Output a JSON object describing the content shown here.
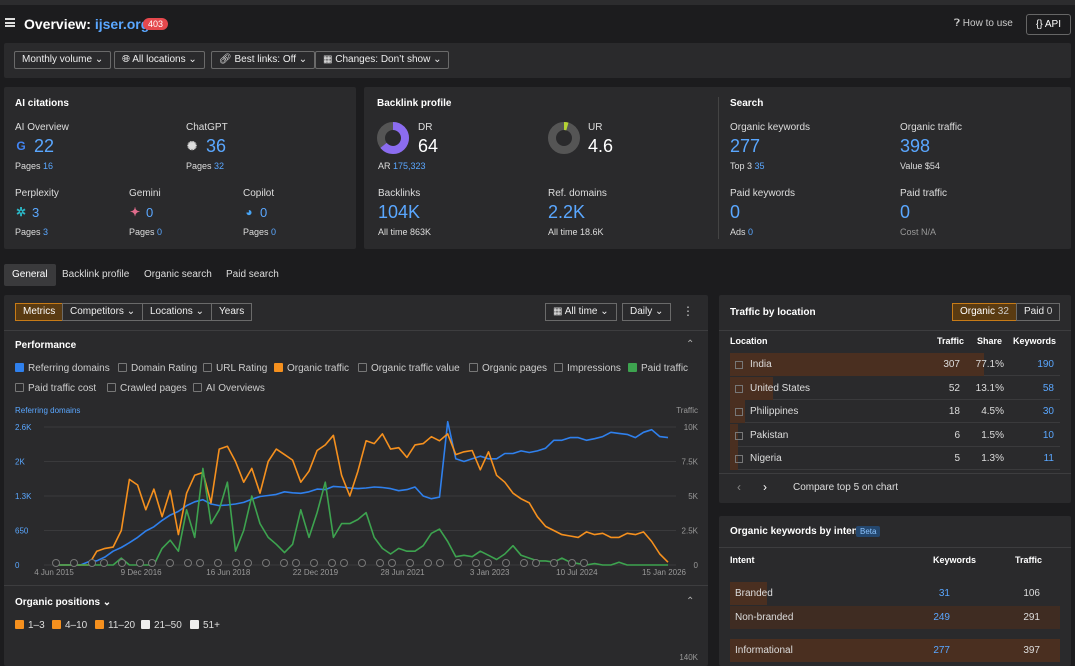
{
  "header": {
    "title_prefix": "Overview: ",
    "domain": "ijser.org/",
    "status_badge": "403",
    "how_to_use": "How to use",
    "api_label": "API"
  },
  "filters": {
    "volume": "Monthly volume",
    "locations": "All locations",
    "best_links": "Best links: Off",
    "changes": "Changes: Don’t show"
  },
  "ai_citations": {
    "title": "AI citations",
    "ai_overview": {
      "label": "AI Overview",
      "value": "22",
      "pages_label": "Pages",
      "pages": "16"
    },
    "chatgpt": {
      "label": "ChatGPT",
      "value": "36",
      "pages_label": "Pages",
      "pages": "32"
    },
    "perplexity": {
      "label": "Perplexity",
      "value": "3",
      "pages_label": "Pages",
      "pages": "3"
    },
    "gemini": {
      "label": "Gemini",
      "value": "0",
      "pages_label": "Pages",
      "pages": "0"
    },
    "copilot": {
      "label": "Copilot",
      "value": "0",
      "pages_label": "Pages",
      "pages": "0"
    }
  },
  "backlink_profile": {
    "title": "Backlink profile",
    "dr": {
      "label": "DR",
      "value": "64",
      "fill": 0.64
    },
    "ar": {
      "label": "AR",
      "value": "175,323"
    },
    "ur": {
      "label": "UR",
      "value": "4.6",
      "fill": 0.046
    },
    "backlinks": {
      "label": "Backlinks",
      "value": "104K",
      "all_time_label": "All time",
      "all_time": "863K"
    },
    "ref_domains": {
      "label": "Ref. domains",
      "value": "2.2K",
      "all_time_label": "All time",
      "all_time": "18.6K"
    }
  },
  "search": {
    "title": "Search",
    "organic_keywords": {
      "label": "Organic keywords",
      "value": "277",
      "top3_label": "Top 3",
      "top3": "35"
    },
    "organic_traffic": {
      "label": "Organic traffic",
      "value": "398",
      "value_label": "Value",
      "value_amount": "$54"
    },
    "paid_keywords": {
      "label": "Paid keywords",
      "value": "0",
      "ads_label": "Ads",
      "ads": "0"
    },
    "paid_traffic": {
      "label": "Paid traffic",
      "value": "0",
      "cost_label": "Cost",
      "cost": "N/A"
    }
  },
  "tabs": [
    "General",
    "Backlink profile",
    "Organic search",
    "Paid search"
  ],
  "chart_toolbar": {
    "metrics": "Metrics",
    "competitors": "Competitors",
    "locations": "Locations",
    "years": "Years",
    "range": "All time",
    "interval": "Daily"
  },
  "performance": {
    "title": "Performance",
    "checkboxes": [
      {
        "label": "Referring domains",
        "checked": true,
        "color": "#2f80ed"
      },
      {
        "label": "Domain Rating",
        "checked": false
      },
      {
        "label": "URL Rating",
        "checked": false
      },
      {
        "label": "Organic traffic",
        "checked": true,
        "color": "#f5901e"
      },
      {
        "label": "Organic traffic value",
        "checked": false
      },
      {
        "label": "Organic pages",
        "checked": false
      },
      {
        "label": "Impressions",
        "checked": false
      },
      {
        "label": "Paid traffic",
        "checked": true,
        "color": "#3da34f"
      },
      {
        "label": "Paid traffic cost",
        "checked": false
      },
      {
        "label": "Crawled pages",
        "checked": false
      },
      {
        "label": "AI Overviews",
        "checked": false
      }
    ]
  },
  "chart_data": {
    "type": "line",
    "ylabel": "Referring domains",
    "y2label": "Traffic",
    "y_ticks": [
      "0",
      "650",
      "1.3K",
      "2K",
      "2.6K"
    ],
    "y2_ticks": [
      "0",
      "2.5K",
      "5K",
      "7.5K",
      "10K"
    ],
    "x_ticks": [
      "4 Jun 2015",
      "9 Dec 2016",
      "16 Jun 2018",
      "22 Dec 2019",
      "28 Jun 2021",
      "3 Jan 2023",
      "10 Jul 2024",
      "15 Jan 2026"
    ],
    "ylim": [
      0,
      2600
    ],
    "y2lim": [
      0,
      10000
    ],
    "series": [
      {
        "name": "Referring domains",
        "color": "#2f80ed",
        "axis": "left",
        "values": [
          0,
          0,
          0,
          0,
          60,
          80,
          150,
          260,
          330,
          420,
          520,
          640,
          720,
          840,
          940,
          1010,
          1120,
          1190,
          1230,
          1150,
          1120,
          1130,
          1150,
          1180,
          1240,
          1290,
          1310,
          1330,
          1380,
          1360,
          1350,
          1380,
          1430,
          1420,
          1480,
          1470,
          1450,
          1440,
          1450,
          1470,
          1460,
          1440,
          1400,
          1420,
          1470,
          1300,
          1250,
          1280,
          2700,
          2000,
          1950,
          2000,
          2050,
          2000,
          2000,
          2100,
          2100,
          2150,
          2120,
          2150,
          2200,
          2350,
          2350,
          2400,
          2400,
          2350,
          2380,
          2420,
          2500,
          2480,
          2460,
          2400,
          2500,
          2550,
          2420,
          2400
        ]
      },
      {
        "name": "Organic traffic",
        "color": "#f5901e",
        "axis": "right",
        "values": [
          0,
          0,
          0,
          0,
          0,
          1000,
          1200,
          1300,
          2500,
          6200,
          5800,
          4000,
          5500,
          3500,
          5400,
          2200,
          5200,
          6500,
          6700,
          4500,
          8400,
          8600,
          7500,
          6000,
          7000,
          5200,
          7500,
          8400,
          8000,
          7600,
          6000,
          6800,
          8300,
          8700,
          9400,
          6500,
          5000,
          6800,
          9000,
          8800,
          9500,
          8400,
          8500,
          7800,
          8700,
          8800,
          9300,
          9000,
          9500,
          8000,
          8200,
          8300,
          6900,
          8200,
          6500,
          6000,
          5200,
          4800,
          4500,
          3500,
          2800,
          2500,
          2200,
          2100,
          2000,
          2400,
          2200,
          2300,
          2000,
          2000,
          2300,
          2200,
          2400,
          1700,
          800,
          200
        ]
      },
      {
        "name": "Paid traffic",
        "color": "#3da34f",
        "axis": "right",
        "values": [
          0,
          0,
          0,
          0,
          0,
          0,
          0,
          0,
          500,
          0,
          0,
          0,
          0,
          1200,
          1800,
          1000,
          4000,
          2000,
          7000,
          3000,
          4000,
          6000,
          1000,
          2500,
          5000,
          3000,
          2000,
          1500,
          900,
          1500,
          4000,
          2000,
          3800,
          6000,
          2000,
          3000,
          3000,
          3300,
          3800,
          2000,
          1200,
          800,
          1200,
          1000,
          1000,
          1400,
          2300,
          2600,
          1700,
          600,
          700,
          600,
          1000,
          700,
          400,
          800,
          1400,
          700,
          500,
          300,
          300,
          200,
          500,
          200,
          100,
          0,
          100,
          0,
          0,
          200,
          0,
          0,
          0,
          0,
          0,
          0
        ]
      }
    ]
  },
  "traffic_by_location": {
    "title": "Traffic by location",
    "toggle": {
      "organic": "Organic",
      "organic_count": "32",
      "paid": "Paid",
      "paid_count": "0"
    },
    "columns": [
      "Location",
      "Traffic",
      "Share",
      "Keywords"
    ],
    "rows": [
      {
        "location": "India",
        "traffic": "307",
        "share": "77.1%",
        "keywords": "190",
        "share_fraction": 0.771
      },
      {
        "location": "United States",
        "traffic": "52",
        "share": "13.1%",
        "keywords": "58",
        "share_fraction": 0.131
      },
      {
        "location": "Philippines",
        "traffic": "18",
        "share": "4.5%",
        "keywords": "30",
        "share_fraction": 0.045
      },
      {
        "location": "Pakistan",
        "traffic": "6",
        "share": "1.5%",
        "keywords": "10",
        "share_fraction": 0.015
      },
      {
        "location": "Nigeria",
        "traffic": "5",
        "share": "1.3%",
        "keywords": "11",
        "share_fraction": 0.013
      }
    ],
    "compare": "Compare top 5 on chart"
  },
  "keywords_by_intent": {
    "title": "Organic keywords by intent",
    "beta": "Beta",
    "columns": [
      "Intent",
      "Keywords",
      "Traffic"
    ],
    "rows": [
      {
        "intent": "Branded",
        "keywords": "31",
        "traffic": "106"
      },
      {
        "intent": "Non-branded",
        "keywords": "249",
        "traffic": "291"
      },
      {
        "intent": "Informational",
        "keywords": "277",
        "traffic": "397"
      }
    ]
  },
  "organic_positions": {
    "title": "Organic positions",
    "checkboxes": [
      {
        "label": "1–3",
        "color": "#f5901e"
      },
      {
        "label": "4–10",
        "color": "#f5901e"
      },
      {
        "label": "11–20",
        "color": "#f5901e"
      },
      {
        "label": "21–50",
        "color": "#eeeeee"
      },
      {
        "label": "51+",
        "color": "#eeeeee"
      }
    ],
    "axis_top": "140K"
  }
}
